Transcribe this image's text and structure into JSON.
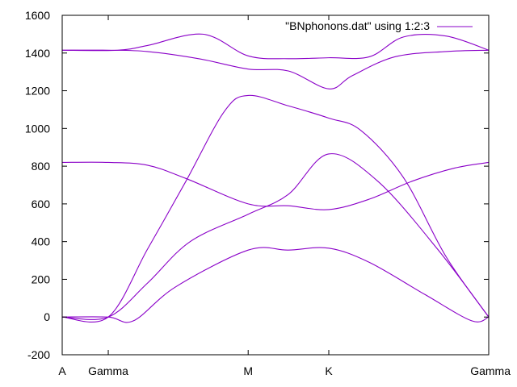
{
  "chart_data": {
    "type": "line",
    "title": "",
    "xlabel": "",
    "ylabel": "",
    "ylim": [
      -200,
      1600
    ],
    "xlim": [
      0,
      1
    ],
    "y_ticks": [
      "1600",
      "1400",
      "1200",
      "1000",
      "800",
      "600",
      "400",
      "200",
      "0",
      "-200"
    ],
    "y_tick_values": [
      1600,
      1400,
      1200,
      1000,
      800,
      600,
      400,
      200,
      0,
      -200
    ],
    "x_ticks": [
      {
        "label": "A",
        "x": 0.0
      },
      {
        "label": "Gamma",
        "x": 0.108
      },
      {
        "label": "M",
        "x": 0.436
      },
      {
        "label": "K",
        "x": 0.625
      },
      {
        "label": "Gamma",
        "x": 1.0
      }
    ],
    "legend": {
      "label": "\"BNphonons.dat\" using 1:2:3",
      "position": "top-right"
    },
    "color": "#8a00c8",
    "grid": false,
    "series": [
      {
        "x": [
          0.0,
          0.108,
          0.167,
          0.266,
          0.436,
          0.53,
          0.625,
          0.72,
          0.85,
          0.96,
          1.0
        ],
        "values": [
          0,
          0,
          -20,
          160,
          355,
          355,
          365,
          290,
          120,
          -20,
          0
        ]
      },
      {
        "x": [
          0.0,
          0.108,
          0.2,
          0.3,
          0.436,
          0.53,
          0.625,
          0.74,
          0.88,
          1.0
        ],
        "values": [
          0,
          0,
          180,
          400,
          545,
          650,
          865,
          720,
          360,
          0
        ]
      },
      {
        "x": [
          0.0,
          0.108,
          0.2,
          0.29,
          0.38,
          0.436,
          0.53,
          0.625,
          0.7,
          0.8,
          0.9,
          1.0
        ],
        "values": [
          0,
          0,
          360,
          720,
          1090,
          1175,
          1120,
          1055,
          990,
          740,
          320,
          0
        ]
      },
      {
        "x": [
          0.0,
          0.108,
          0.2,
          0.29,
          0.436,
          0.53,
          0.625,
          0.72,
          0.82,
          0.92,
          1.0
        ],
        "values": [
          820,
          820,
          805,
          735,
          600,
          590,
          570,
          625,
          720,
          790,
          820
        ]
      },
      {
        "x": [
          0.0,
          0.108,
          0.2,
          0.32,
          0.436,
          0.53,
          0.625,
          0.68,
          0.78,
          0.9,
          1.0
        ],
        "values": [
          1415,
          1415,
          1408,
          1370,
          1315,
          1305,
          1210,
          1280,
          1380,
          1408,
          1415
        ]
      },
      {
        "x": [
          0.0,
          0.13,
          0.2,
          0.33,
          0.436,
          0.53,
          0.625,
          0.72,
          0.8,
          0.9,
          1.0
        ],
        "values": [
          1415,
          1415,
          1440,
          1500,
          1385,
          1370,
          1375,
          1380,
          1485,
          1490,
          1415
        ]
      }
    ]
  }
}
